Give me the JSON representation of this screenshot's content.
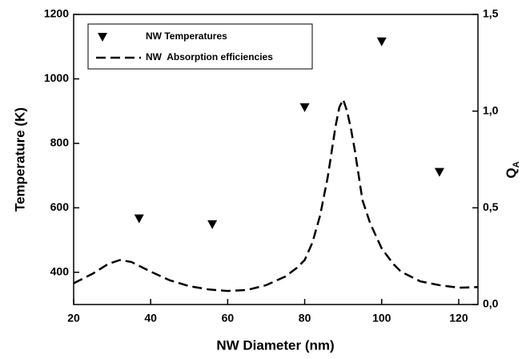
{
  "chart_data": {
    "type": "scatter",
    "xlabel": "NW Diameter (nm)",
    "ylabel": "Temperature (K)",
    "y2label": [
      "Q",
      "A"
    ],
    "xlim": [
      20,
      125
    ],
    "xticks": [
      20,
      40,
      60,
      80,
      100,
      120
    ],
    "ylim": [
      300,
      1200
    ],
    "yticks": [
      400,
      600,
      800,
      1000,
      1200
    ],
    "y2lim": [
      0,
      1.5
    ],
    "y2ticks": [
      {
        "value": 0,
        "label": "0,0"
      },
      {
        "value": 0.5,
        "label": "0,5"
      },
      {
        "value": 1,
        "label": "1,0"
      },
      {
        "value": 1.5,
        "label": "1,5"
      }
    ],
    "legend": "upper left",
    "series": [
      {
        "name": "NW Temperatures",
        "type": "scatter",
        "color": "#000000",
        "x": [
          37,
          56,
          80,
          100,
          115
        ],
        "values": [
          567,
          549,
          912,
          1116,
          711
        ]
      },
      {
        "name": "NW  Absorption efficiencies",
        "type": "line",
        "axis": "y2",
        "color": "#000000",
        "x": [
          20,
          25,
          29,
          32,
          35,
          40,
          45,
          50,
          55,
          60,
          65,
          70,
          75,
          78,
          80,
          82,
          84,
          86,
          87,
          88,
          89,
          90,
          91,
          92,
          93,
          95,
          97,
          100,
          103,
          105,
          110,
          115,
          120,
          125
        ],
        "values": [
          0.11,
          0.16,
          0.21,
          0.23,
          0.22,
          0.17,
          0.125,
          0.095,
          0.078,
          0.07,
          0.075,
          0.1,
          0.145,
          0.19,
          0.23,
          0.32,
          0.46,
          0.66,
          0.79,
          0.92,
          1.02,
          1.06,
          1.0,
          0.91,
          0.8,
          0.54,
          0.42,
          0.29,
          0.21,
          0.17,
          0.12,
          0.1,
          0.087,
          0.09
        ]
      }
    ]
  }
}
